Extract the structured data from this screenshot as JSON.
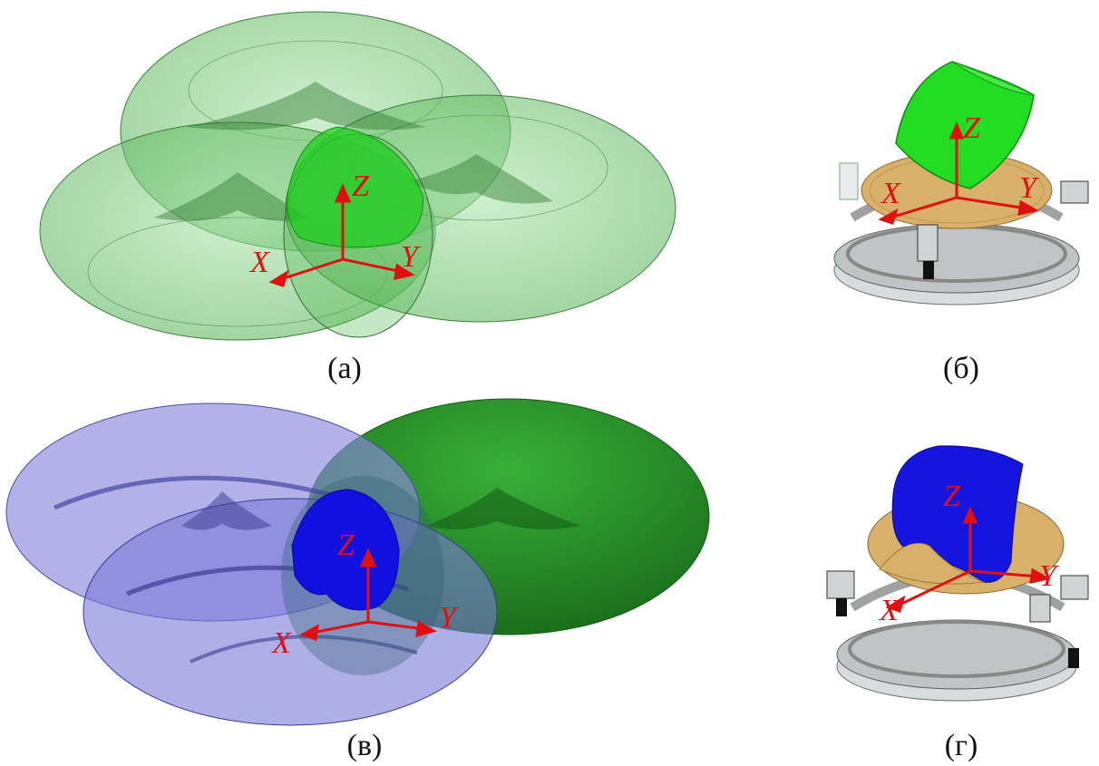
{
  "panels": [
    {
      "id": "a",
      "caption": "(а)",
      "axes": {
        "x": "X",
        "y": "Y",
        "z": "Z"
      },
      "colors": {
        "shell": "#6fcf6f",
        "inner": "#1fcf1f",
        "axis": "#e01010"
      },
      "icon": "three-overlapping-green-tori"
    },
    {
      "id": "b",
      "caption": "(б)",
      "axes": {
        "x": "X",
        "y": "Y",
        "z": "Z"
      },
      "colors": {
        "volume": "#22dd22",
        "platform": "#d9b06a",
        "ring": "#b8bcbc",
        "axis": "#e01010"
      },
      "icon": "mechanism-with-green-workspace"
    },
    {
      "id": "c",
      "caption": "(в)",
      "axes": {
        "x": "X",
        "y": "Y",
        "z": "Z"
      },
      "colors": {
        "shell_blue": "#7a7ad8",
        "inner_blue": "#1010e0",
        "shell_green": "#1f8f1f",
        "axis": "#e01010"
      },
      "icon": "blue-and-green-tori"
    },
    {
      "id": "d",
      "caption": "(г)",
      "axes": {
        "x": "X",
        "y": "Y",
        "z": "Z"
      },
      "colors": {
        "volume": "#1515e0",
        "platform": "#d9b06a",
        "ring": "#b8bcbc",
        "axis": "#e01010"
      },
      "icon": "mechanism-with-blue-workspace"
    }
  ]
}
